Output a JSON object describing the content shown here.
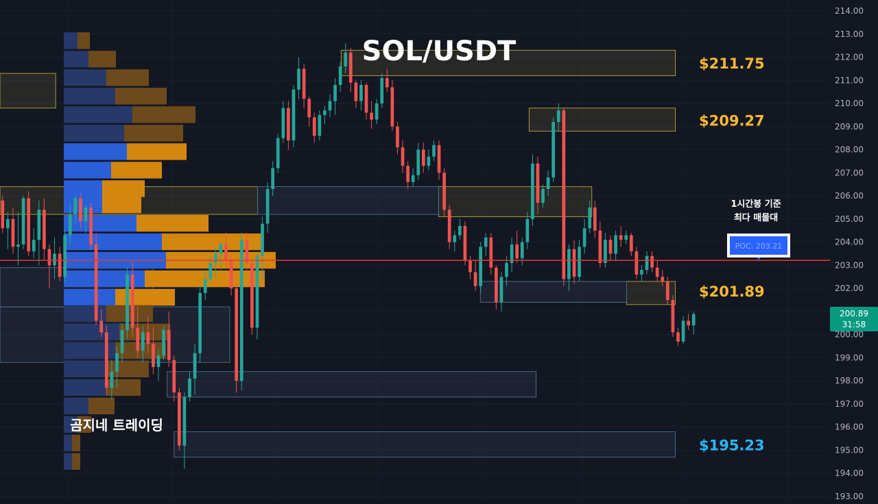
{
  "chart_data": {
    "type": "candlestick",
    "title": "SOL/USDT",
    "watermark": "곰지네 트레이딩",
    "ylim": [
      193.0,
      214.0
    ],
    "y_ticks": [
      "214.00",
      "213.00",
      "212.00",
      "211.00",
      "210.00",
      "209.00",
      "208.00",
      "207.00",
      "206.00",
      "205.00",
      "204.00",
      "203.00",
      "202.00",
      "201.00",
      "200.00",
      "199.00",
      "198.00",
      "197.00",
      "196.00",
      "195.00",
      "194.00",
      "193.00"
    ],
    "last_price": {
      "value": "200.89",
      "countdown": "31:58"
    },
    "poc": {
      "label": "POC: 203.21",
      "value": 203.21,
      "note_line1": "1시간봉 기준",
      "note_line2": "최다 매물대"
    },
    "levels": [
      {
        "label": "$211.75",
        "value": 211.75,
        "kind": "resistance"
      },
      {
        "label": "$209.27",
        "value": 209.27,
        "kind": "resistance"
      },
      {
        "label": "$201.89",
        "value": 201.89,
        "kind": "resistance"
      },
      {
        "label": "$195.23",
        "value": 195.23,
        "kind": "support"
      }
    ],
    "zones_yellow": [
      {
        "top": 211.3,
        "bottom": 209.8,
        "x_from": 0,
        "x_to": 8
      },
      {
        "top": 212.3,
        "bottom": 211.2,
        "x_from": 49,
        "x_to": 97
      },
      {
        "top": 209.8,
        "bottom": 208.8,
        "x_from": 76,
        "x_to": 97
      },
      {
        "top": 206.4,
        "bottom": 205.2,
        "x_from": 0,
        "x_to": 37
      },
      {
        "top": 206.4,
        "bottom": 205.1,
        "x_from": 63,
        "x_to": 85
      },
      {
        "top": 202.3,
        "bottom": 201.3,
        "x_from": 90,
        "x_to": 97
      }
    ],
    "zones_blue": [
      {
        "top": 206.4,
        "bottom": 205.2,
        "x_from": 37,
        "x_to": 63
      },
      {
        "top": 202.3,
        "bottom": 201.4,
        "x_from": 69,
        "x_to": 90
      },
      {
        "top": 202.9,
        "bottom": 201.2,
        "x_from": 0,
        "x_to": 22
      },
      {
        "top": 201.2,
        "bottom": 198.8,
        "x_from": 0,
        "x_to": 33
      },
      {
        "top": 198.4,
        "bottom": 197.3,
        "x_from": 24,
        "x_to": 77
      },
      {
        "top": 195.8,
        "bottom": 194.7,
        "x_from": 25,
        "x_to": 97
      }
    ],
    "volume_profile": [
      {
        "price": 212.7,
        "buy": 20,
        "sell": 18
      },
      {
        "price": 211.9,
        "buy": 36,
        "sell": 40
      },
      {
        "price": 211.1,
        "buy": 62,
        "sell": 62
      },
      {
        "price": 210.3,
        "buy": 75,
        "sell": 75
      },
      {
        "price": 209.5,
        "buy": 100,
        "sell": 92
      },
      {
        "price": 208.7,
        "buy": 88,
        "sell": 86
      },
      {
        "price": 207.9,
        "buy": 92,
        "sell": 87
      },
      {
        "price": 207.1,
        "buy": 69,
        "sell": 74
      },
      {
        "price": 206.3,
        "buy": 56,
        "sell": 62
      },
      {
        "price": 205.6,
        "buy": 56,
        "sell": 57
      },
      {
        "price": 204.8,
        "buy": 106,
        "sell": 105
      },
      {
        "price": 204.0,
        "buy": 143,
        "sell": 146
      },
      {
        "price": 203.2,
        "buy": 149,
        "sell": 160
      },
      {
        "price": 202.4,
        "buy": 118,
        "sell": 175
      },
      {
        "price": 201.6,
        "buy": 75,
        "sell": 87
      },
      {
        "price": 200.9,
        "buy": 62,
        "sell": 68
      },
      {
        "price": 200.1,
        "buy": 81,
        "sell": 74
      },
      {
        "price": 199.3,
        "buy": 75,
        "sell": 74
      },
      {
        "price": 198.5,
        "buy": 62,
        "sell": 62
      },
      {
        "price": 197.7,
        "buy": 62,
        "sell": 50
      },
      {
        "price": 196.9,
        "buy": 36,
        "sell": 38
      },
      {
        "price": 196.1,
        "buy": 20,
        "sell": 20
      },
      {
        "price": 195.3,
        "buy": 12,
        "sell": 12
      },
      {
        "price": 194.5,
        "buy": 12,
        "sell": 12
      }
    ],
    "candles": [
      [
        205.8,
        206.0,
        204.4,
        204.6
      ],
      [
        204.6,
        205.3,
        203.7,
        205.0
      ],
      [
        205.0,
        205.5,
        203.5,
        203.8
      ],
      [
        203.8,
        205.3,
        203.0,
        203.9
      ],
      [
        203.9,
        206.0,
        203.7,
        205.9
      ],
      [
        205.9,
        206.2,
        203.4,
        203.6
      ],
      [
        203.6,
        204.6,
        203.3,
        204.1
      ],
      [
        204.1,
        205.8,
        203.0,
        205.4
      ],
      [
        205.4,
        205.9,
        203.2,
        203.7
      ],
      [
        203.7,
        203.9,
        202.0,
        203.0
      ],
      [
        203.0,
        204.2,
        202.4,
        203.5
      ],
      [
        203.5,
        203.8,
        202.3,
        202.5
      ],
      [
        202.5,
        204.5,
        202.3,
        204.3
      ],
      [
        204.3,
        205.7,
        203.9,
        205.2
      ],
      [
        205.2,
        206.0,
        204.8,
        205.9
      ],
      [
        205.9,
        206.1,
        204.6,
        204.9
      ],
      [
        204.9,
        205.6,
        204.4,
        205.5
      ],
      [
        205.5,
        205.7,
        203.7,
        203.9
      ],
      [
        203.9,
        204.4,
        200.4,
        200.6
      ],
      [
        200.6,
        201.1,
        199.9,
        200.1
      ],
      [
        200.1,
        200.4,
        197.4,
        197.7
      ],
      [
        197.7,
        198.9,
        197.2,
        198.4
      ],
      [
        198.4,
        199.5,
        197.7,
        199.2
      ],
      [
        199.2,
        200.5,
        198.8,
        200.2
      ],
      [
        200.2,
        202.9,
        199.8,
        202.6
      ],
      [
        202.6,
        203.2,
        199.9,
        200.3
      ],
      [
        200.3,
        201.2,
        199.0,
        199.3
      ],
      [
        199.3,
        200.4,
        198.8,
        200.1
      ],
      [
        200.1,
        200.8,
        199.2,
        199.6
      ],
      [
        199.6,
        200.3,
        198.3,
        198.6
      ],
      [
        198.6,
        199.4,
        198.0,
        199.1
      ],
      [
        199.1,
        200.4,
        198.9,
        200.2
      ],
      [
        200.2,
        201.0,
        198.6,
        198.9
      ],
      [
        198.9,
        199.1,
        197.1,
        197.5
      ],
      [
        197.5,
        197.7,
        195.0,
        195.2
      ],
      [
        195.2,
        197.5,
        194.2,
        197.3
      ],
      [
        197.3,
        198.4,
        197.1,
        198.1
      ],
      [
        198.1,
        199.6,
        197.4,
        199.2
      ],
      [
        199.2,
        202.1,
        198.8,
        201.8
      ],
      [
        201.8,
        202.8,
        201.5,
        202.4
      ],
      [
        202.4,
        203.4,
        202.2,
        203.1
      ],
      [
        203.1,
        203.8,
        202.5,
        203.5
      ],
      [
        203.5,
        204.0,
        202.8,
        203.9
      ],
      [
        203.9,
        204.4,
        202.9,
        203.2
      ],
      [
        203.2,
        203.5,
        201.7,
        202.0
      ],
      [
        202.0,
        202.2,
        197.5,
        198.0
      ],
      [
        198.0,
        204.4,
        197.6,
        204.1
      ],
      [
        204.1,
        204.4,
        202.7,
        203.1
      ],
      [
        203.1,
        203.2,
        200.0,
        200.3
      ],
      [
        200.3,
        203.5,
        199.8,
        203.4
      ],
      [
        203.4,
        205.1,
        202.4,
        204.8
      ],
      [
        204.8,
        206.6,
        204.4,
        206.3
      ],
      [
        206.3,
        207.5,
        206.0,
        207.2
      ],
      [
        207.2,
        208.7,
        207.0,
        208.5
      ],
      [
        208.5,
        210.1,
        208.3,
        209.8
      ],
      [
        209.8,
        210.1,
        208.0,
        208.4
      ],
      [
        208.4,
        210.8,
        208.1,
        210.6
      ],
      [
        210.6,
        212.0,
        210.2,
        211.5
      ],
      [
        211.5,
        211.7,
        209.8,
        210.2
      ],
      [
        210.2,
        210.3,
        209.0,
        209.4
      ],
      [
        209.4,
        209.6,
        208.3,
        208.6
      ],
      [
        208.6,
        209.7,
        208.4,
        209.5
      ],
      [
        209.5,
        209.9,
        209.1,
        209.7
      ],
      [
        209.7,
        210.4,
        209.4,
        210.1
      ],
      [
        210.1,
        211.1,
        209.5,
        210.8
      ],
      [
        210.8,
        211.8,
        210.5,
        211.6
      ],
      [
        211.6,
        212.6,
        211.3,
        212.2
      ],
      [
        212.2,
        212.4,
        210.5,
        210.9
      ],
      [
        210.9,
        211.0,
        209.8,
        210.1
      ],
      [
        210.1,
        211.0,
        209.7,
        210.8
      ],
      [
        210.8,
        210.9,
        209.3,
        209.6
      ],
      [
        209.6,
        210.1,
        208.9,
        209.3
      ],
      [
        209.3,
        210.2,
        209.1,
        210.0
      ],
      [
        210.0,
        211.3,
        209.8,
        211.1
      ],
      [
        211.1,
        211.5,
        210.5,
        210.7
      ],
      [
        210.7,
        211.0,
        208.8,
        209.0
      ],
      [
        209.0,
        209.2,
        207.8,
        208.1
      ],
      [
        208.1,
        208.4,
        207.0,
        207.3
      ],
      [
        207.3,
        207.5,
        206.3,
        206.6
      ],
      [
        206.6,
        207.2,
        206.4,
        206.9
      ],
      [
        206.9,
        208.3,
        206.7,
        208.0
      ],
      [
        208.0,
        208.3,
        207.0,
        207.3
      ],
      [
        207.3,
        208.0,
        207.1,
        207.7
      ],
      [
        207.7,
        208.4,
        207.5,
        208.2
      ],
      [
        208.2,
        208.4,
        206.7,
        207.0
      ],
      [
        207.0,
        207.2,
        205.1,
        205.4
      ],
      [
        205.4,
        205.6,
        203.7,
        204.0
      ],
      [
        204.0,
        204.5,
        203.6,
        204.3
      ],
      [
        204.3,
        205.0,
        204.1,
        204.7
      ],
      [
        204.7,
        204.9,
        203.0,
        203.2
      ],
      [
        203.2,
        203.4,
        202.4,
        202.7
      ],
      [
        202.7,
        203.2,
        201.9,
        202.1
      ],
      [
        202.1,
        204.0,
        201.8,
        203.8
      ],
      [
        203.8,
        204.4,
        203.4,
        204.2
      ],
      [
        204.2,
        204.4,
        202.6,
        202.9
      ],
      [
        202.9,
        203.0,
        201.1,
        201.4
      ],
      [
        201.4,
        202.7,
        201.0,
        202.5
      ],
      [
        202.5,
        203.4,
        202.1,
        203.1
      ],
      [
        203.1,
        204.2,
        202.7,
        203.9
      ],
      [
        203.9,
        204.5,
        203.1,
        203.3
      ],
      [
        203.3,
        204.2,
        203.0,
        204.0
      ],
      [
        204.0,
        205.3,
        203.7,
        205.0
      ],
      [
        205.0,
        207.8,
        204.7,
        207.4
      ],
      [
        207.4,
        207.7,
        205.2,
        205.7
      ],
      [
        205.7,
        206.5,
        205.5,
        206.3
      ],
      [
        206.3,
        207.1,
        206.0,
        206.8
      ],
      [
        206.8,
        209.4,
        206.6,
        209.2
      ],
      [
        209.2,
        210.0,
        208.8,
        209.7
      ],
      [
        209.7,
        209.8,
        202.1,
        202.4
      ],
      [
        202.4,
        203.9,
        201.9,
        203.7
      ],
      [
        203.7,
        204.1,
        202.2,
        202.5
      ],
      [
        202.5,
        204.1,
        202.3,
        203.8
      ],
      [
        203.8,
        205.0,
        203.5,
        204.6
      ],
      [
        204.6,
        205.8,
        204.4,
        205.5
      ],
      [
        205.5,
        205.8,
        204.2,
        204.5
      ],
      [
        204.5,
        204.9,
        202.9,
        203.1
      ],
      [
        203.1,
        204.4,
        202.9,
        204.1
      ],
      [
        204.1,
        204.3,
        203.2,
        203.5
      ],
      [
        203.5,
        204.5,
        203.2,
        204.3
      ],
      [
        204.3,
        204.7,
        203.8,
        204.1
      ],
      [
        204.1,
        204.5,
        203.9,
        204.3
      ],
      [
        204.3,
        204.4,
        203.4,
        203.6
      ],
      [
        203.6,
        203.8,
        202.4,
        202.6
      ],
      [
        202.6,
        203.0,
        202.3,
        202.8
      ],
      [
        202.8,
        203.6,
        202.6,
        203.4
      ],
      [
        203.4,
        203.6,
        202.7,
        202.9
      ],
      [
        202.9,
        203.2,
        202.3,
        202.5
      ],
      [
        202.5,
        202.8,
        202.1,
        202.3
      ],
      [
        202.3,
        202.5,
        201.3,
        201.5
      ],
      [
        201.5,
        201.7,
        199.9,
        200.1
      ],
      [
        200.1,
        200.3,
        199.5,
        199.7
      ],
      [
        199.7,
        200.8,
        199.6,
        200.6
      ],
      [
        200.6,
        200.9,
        200.2,
        200.4
      ],
      [
        200.4,
        201.0,
        200.0,
        200.89
      ]
    ]
  }
}
